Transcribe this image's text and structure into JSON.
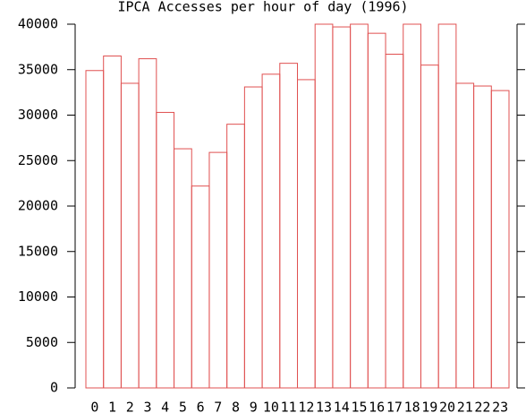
{
  "chart_data": {
    "type": "bar",
    "title": "IPCA Accesses per hour of day (1996)",
    "categories": [
      "0",
      "1",
      "2",
      "3",
      "4",
      "5",
      "6",
      "7",
      "8",
      "9",
      "10",
      "11",
      "12",
      "13",
      "14",
      "15",
      "16",
      "17",
      "18",
      "19",
      "20",
      "21",
      "22",
      "23"
    ],
    "values": [
      34900,
      36500,
      33500,
      36200,
      30300,
      26300,
      22200,
      25900,
      29000,
      33100,
      34500,
      35700,
      33900,
      40000,
      39700,
      40000,
      39000,
      36700,
      40000,
      35500,
      40000,
      33500,
      33200,
      32700
    ],
    "color": "#e05050",
    "ylim": [
      0,
      40000
    ],
    "yticks": [
      0,
      5000,
      10000,
      15000,
      20000,
      25000,
      30000,
      35000,
      40000
    ],
    "grid": false
  }
}
